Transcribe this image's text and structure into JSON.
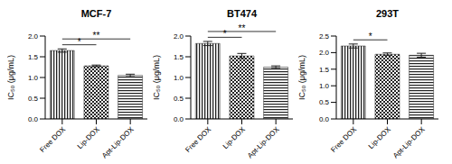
{
  "chart_data": [
    {
      "type": "bar",
      "title": "MCF-7",
      "y_label": "IC₅₀ (μg/mL)",
      "categories": [
        "Free DOX",
        "Lip-DOX",
        "Apt-Lip-DOX"
      ],
      "values": [
        1.65,
        1.28,
        1.05
      ],
      "errors": [
        0.04,
        0.02,
        0.03
      ],
      "color": "#222222",
      "ylim": [
        0,
        2.0
      ],
      "yticks": [
        {
          "value": 0,
          "label": "0.0"
        },
        0.5,
        {
          "value": 1,
          "label": "1.0"
        },
        1.5,
        {
          "value": 2,
          "label": "2.0"
        }
      ],
      "annotations": [
        {
          "text": "*",
          "from": "Free DOX",
          "to": "Lip-DOX"
        },
        {
          "text": "**",
          "from": "Free DOX",
          "to": "Apt-Lip-DOX"
        }
      ]
    },
    {
      "type": "bar",
      "title": "BT474",
      "y_label": "IC₅₀ (μg/mL)",
      "categories": [
        "Free DOX",
        "Lip-DOX",
        "Apt-Lip-DOX"
      ],
      "values": [
        1.82,
        1.52,
        1.25
      ],
      "errors": [
        0.05,
        0.06,
        0.03
      ],
      "color": "#222222",
      "ylim": [
        0,
        2.0
      ],
      "yticks": [
        {
          "value": 0,
          "label": "0.0"
        },
        0.5,
        {
          "value": 1,
          "label": "1.0"
        },
        1.5,
        {
          "value": 2,
          "label": "2.0"
        }
      ],
      "annotations": [
        {
          "text": "*",
          "from": "Free DOX",
          "to": "Lip-DOX"
        },
        {
          "text": "**",
          "from": "Free DOX",
          "to": "Apt-Lip-DOX"
        }
      ]
    },
    {
      "type": "bar",
      "title": "293T",
      "y_label": "IC₅₀ (μg/mL)",
      "categories": [
        "Free DOX",
        "Lip-DOX",
        "Apt-Lip-DOX"
      ],
      "values": [
        2.2,
        1.95,
        1.92
      ],
      "errors": [
        0.06,
        0.04,
        0.06
      ],
      "color": "#222222",
      "ylim": [
        0,
        2.5
      ],
      "yticks": [
        {
          "value": 0,
          "label": "0.0"
        },
        0.5,
        {
          "value": 1,
          "label": "1.0"
        },
        1.5,
        {
          "value": 2,
          "label": "2.0"
        },
        2.5
      ],
      "annotations": [
        {
          "text": "*",
          "from": "Free DOX",
          "to": "Lip-DOX"
        }
      ]
    }
  ]
}
